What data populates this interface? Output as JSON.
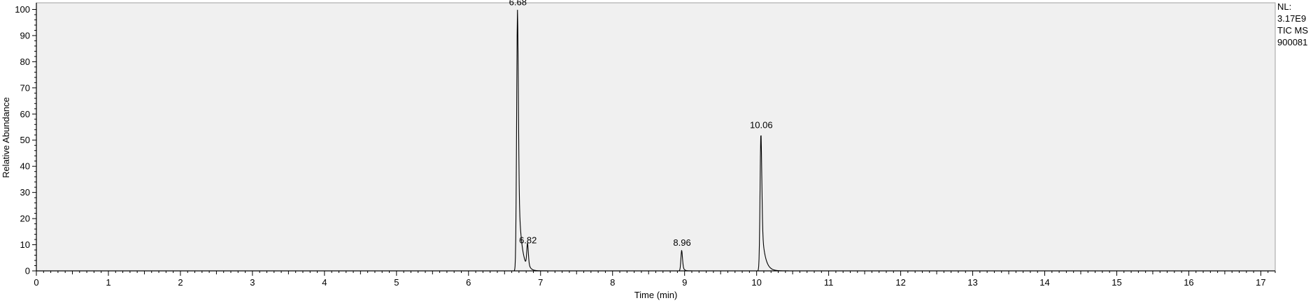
{
  "chart_data": {
    "type": "line",
    "title": "",
    "xlabel": "Time (min)",
    "ylabel": "Relative Abundance",
    "xlim": [
      0,
      17.2
    ],
    "ylim": [
      0,
      102
    ],
    "x_ticks": [
      "0",
      "1",
      "2",
      "3",
      "4",
      "5",
      "6",
      "7",
      "8",
      "9",
      "10",
      "11",
      "12",
      "13",
      "14",
      "15",
      "16",
      "17"
    ],
    "y_ticks": [
      "0",
      "10",
      "20",
      "30",
      "40",
      "50",
      "60",
      "70",
      "80",
      "90",
      "100"
    ],
    "series": [
      {
        "name": "TIC MS",
        "peaks": [
          {
            "time": 6.68,
            "value": 100,
            "label": "6.68"
          },
          {
            "time": 6.82,
            "value": 9,
            "label": "6.82"
          },
          {
            "time": 8.96,
            "value": 8,
            "label": "8.96"
          },
          {
            "time": 10.06,
            "value": 53,
            "label": "10.06"
          }
        ]
      }
    ],
    "info": [
      "NL:",
      "3.17E9",
      "TIC  MS",
      "900081"
    ]
  }
}
